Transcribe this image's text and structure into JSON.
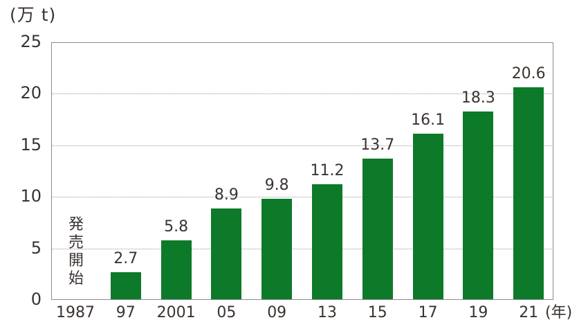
{
  "chart_data": {
    "type": "bar",
    "title": "",
    "ylabel": "(万 t)",
    "xlabel": "(年)",
    "ylim": [
      0,
      25
    ],
    "yticks": [
      0,
      5,
      10,
      15,
      20,
      25
    ],
    "grid": true,
    "categories": [
      "1987",
      "97",
      "2001",
      "05",
      "09",
      "13",
      "15",
      "17",
      "19",
      "21"
    ],
    "values": [
      null,
      2.7,
      5.8,
      8.9,
      9.8,
      11.2,
      13.7,
      16.1,
      18.3,
      20.6
    ],
    "value_labels": [
      "",
      "2.7",
      "5.8",
      "8.9",
      "9.8",
      "11.2",
      "13.7",
      "16.1",
      "18.3",
      "20.6"
    ],
    "annotations": [
      {
        "category": "1987",
        "text": "発売開始"
      }
    ],
    "bar_color": "#0d7a2a"
  },
  "labels": {
    "y_unit": "(万 t)",
    "x_unit": "(年)",
    "launch_note": "発売開始"
  }
}
